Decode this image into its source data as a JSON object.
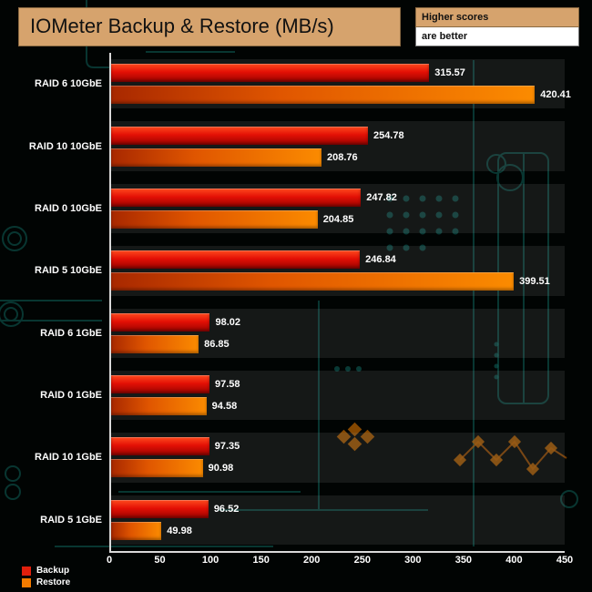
{
  "header": {
    "title": "IOMeter Backup & Restore (MB/s)",
    "note_line1": "Higher scores",
    "note_line2": "are better",
    "title_bg": "#d6a36d"
  },
  "chart_data": {
    "type": "bar",
    "orientation": "horizontal",
    "title": "IOMeter Backup & Restore (MB/s)",
    "categories": [
      "RAID 6 10GbE",
      "RAID 10 10GbE",
      "RAID 0 10GbE",
      "RAID 5 10GbE",
      "RAID 6 1GbE",
      "RAID 0 1GbE",
      "RAID 10 1GbE",
      "RAID 5 1GbE"
    ],
    "series": [
      {
        "name": "Backup",
        "color": "#e11f0c",
        "values": [
          315.57,
          254.78,
          247.82,
          246.84,
          98.02,
          97.58,
          97.35,
          96.52
        ]
      },
      {
        "name": "Restore",
        "color": "#f47b00",
        "values": [
          420.41,
          208.76,
          204.85,
          399.51,
          86.85,
          94.58,
          90.98,
          49.98
        ]
      }
    ],
    "xlabel": "",
    "ylabel": "",
    "xlim": [
      0,
      450
    ],
    "ticks": [
      0,
      50,
      100,
      150,
      200,
      250,
      300,
      350,
      400,
      450
    ],
    "grid": false,
    "legend_position": "bottom-left",
    "notes": [
      "Higher scores",
      "are better"
    ]
  }
}
